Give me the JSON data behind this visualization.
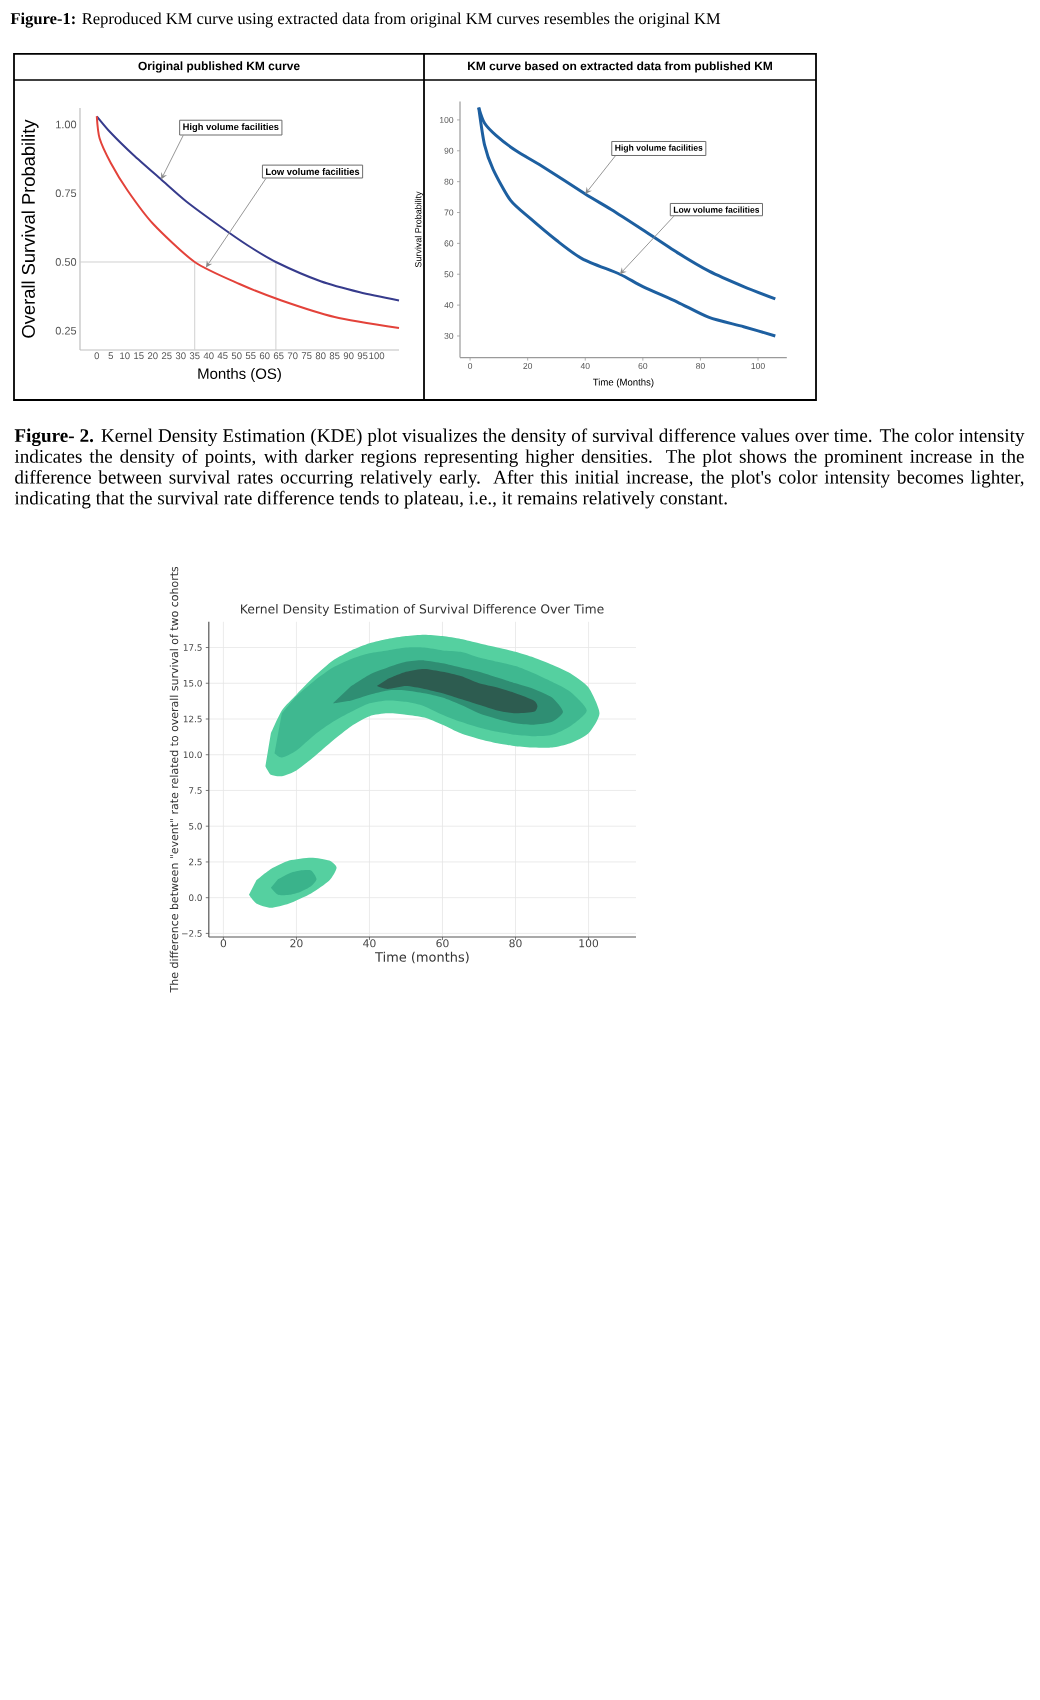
{
  "chart_data": [
    {
      "type": "line",
      "title": "Original published KM curve",
      "xlabel": "Months (OS)",
      "ylabel": "Overall Survival Probability",
      "series": [
        {
          "color": "#363b8c",
          "x": [
            0,
            5,
            13,
            23,
            32,
            44,
            54,
            64,
            80,
            94,
            108
          ],
          "values": [
            1.03,
            0.97,
            0.89,
            0.8,
            0.72,
            0.63,
            0.56,
            0.5,
            0.43,
            0.39,
            0.36
          ]
        },
        {
          "color": "#e3423a",
          "x": [
            0,
            1,
            5,
            11,
            20,
            35,
            51,
            66,
            85,
            108
          ],
          "values": [
            1.03,
            0.95,
            0.86,
            0.76,
            0.64,
            0.5,
            0.42,
            0.36,
            0.3,
            0.26
          ]
        }
      ],
      "xlim": [
        -6,
        108
      ],
      "ylim": [
        0.18,
        1.06
      ],
      "xticks": [
        0,
        5,
        10,
        15,
        20,
        25,
        30,
        35,
        40,
        45,
        50,
        55,
        60,
        65,
        70,
        75,
        80,
        85,
        90,
        95,
        100
      ],
      "yticks": [
        0.25,
        {
          "value": 0.5,
          "label": "0.50"
        },
        0.75,
        {
          "value": 1,
          "label": "1.00"
        }
      ],
      "ref_lines": [
        {
          "axis": "y",
          "value": 0.5,
          "color": "#d0d0d0"
        },
        {
          "axis": "x",
          "value": 35,
          "color": "#d0d0d0"
        },
        {
          "axis": "x",
          "value": 64,
          "color": "#d0d0d0"
        }
      ],
      "annotations": [
        "**Figure-1:** Reproduced KM curve using extracted data from original KM curves resembles the original KM",
        {
          "text": "High volume facilities",
          "x": 23,
          "y": 0.8
        },
        {
          "text": "Low volume facilities",
          "x": 39,
          "y": 0.48
        }
      ]
    },
    {
      "type": "line",
      "title": "KM curve based on extracted data from published KM",
      "xlabel": "Time (Months)",
      "ylabel": "Survival Probability",
      "series": [
        {
          "color": "#1d5fa0",
          "x": [
            3,
            5,
            9,
            16,
            25,
            40,
            49,
            59,
            72,
            83,
            95,
            106
          ],
          "values": [
            104,
            99,
            95,
            90,
            85,
            76,
            71,
            65,
            57,
            51,
            46,
            42
          ]
        },
        {
          "color": "#1d5fa0",
          "x": [
            3,
            5,
            8,
            14,
            21,
            30,
            39,
            52,
            60,
            72,
            83,
            95,
            106
          ],
          "values": [
            104,
            92,
            84,
            74,
            68,
            61,
            55,
            50,
            46,
            41,
            36,
            33,
            30
          ]
        }
      ],
      "xlim": [
        -3.5,
        110
      ],
      "ylim": [
        23,
        106
      ],
      "xticks": [
        0,
        20,
        40,
        60,
        80,
        100
      ],
      "yticks": [
        30,
        40,
        50,
        60,
        70,
        80,
        90,
        100
      ],
      "annotations": [
        {
          "text": "High volume facilities",
          "x": 40,
          "y": 76
        },
        {
          "text": "Low volume facilities",
          "x": 52,
          "y": 50
        }
      ]
    },
    {
      "type": "area",
      "title": "Kernel Density Estimation of Survival Difference Over Time",
      "xlabel": "Time (months)",
      "ylabel": "The difference between \"event\" rate related to overall survival of two cohorts",
      "series": [
        {
          "color": "#55d0a0",
          "x": [
            11.5,
            13,
            16,
            20,
            25,
            30,
            35,
            40,
            45,
            50,
            55,
            60,
            65,
            70,
            75,
            80,
            85,
            90,
            95,
            100,
            103
          ],
          "values": [
            null,
            null,
            null,
            null,
            null,
            null,
            null,
            null,
            null,
            null,
            null,
            null,
            null,
            null,
            null,
            null,
            null,
            null,
            null,
            null,
            null
          ],
          "lower": [
            9.2,
            8.6,
            8.5,
            8.9,
            9.9,
            11.0,
            12.0,
            12.7,
            12.9,
            12.8,
            12.6,
            12.1,
            11.5,
            11.1,
            10.8,
            10.6,
            10.5,
            10.5,
            10.8,
            11.5,
            12.9
          ],
          "upper": [
            9.2,
            11.5,
            13.1,
            14.2,
            15.5,
            16.6,
            17.3,
            17.8,
            18.1,
            18.3,
            18.4,
            18.3,
            18.1,
            17.8,
            17.5,
            17.2,
            16.8,
            16.3,
            15.7,
            14.7,
            12.9
          ]
        },
        {
          "color": "#3fb890",
          "x": [
            14,
            16,
            20,
            25,
            30,
            35,
            40,
            45,
            50,
            55,
            60,
            65,
            70,
            75,
            80,
            85,
            90,
            95,
            99.5
          ],
          "values": [
            null,
            null,
            null,
            null,
            null,
            null,
            null,
            null,
            null,
            null,
            null,
            null,
            null,
            null,
            null,
            null,
            null,
            null,
            null
          ],
          "lower": [
            10.1,
            9.8,
            10.3,
            11.4,
            12.3,
            13.0,
            13.6,
            13.8,
            13.7,
            13.4,
            12.8,
            12.3,
            11.9,
            11.6,
            11.4,
            11.3,
            11.4,
            12.0,
            13.1
          ],
          "upper": [
            10.1,
            12.9,
            14.1,
            15.2,
            16.1,
            16.7,
            17.1,
            17.3,
            17.5,
            17.5,
            17.3,
            17.2,
            16.8,
            16.5,
            16.2,
            15.7,
            15.1,
            14.4,
            13.1
          ]
        },
        {
          "color": "#2f8e73",
          "x": [
            30,
            35,
            40,
            45,
            50,
            55,
            60,
            65,
            70,
            75,
            80,
            85,
            90,
            93
          ],
          "values": [
            null,
            null,
            null,
            null,
            null,
            null,
            null,
            null,
            null,
            null,
            null,
            null,
            null,
            null
          ],
          "lower": [
            13.6,
            13.8,
            14.2,
            14.5,
            14.5,
            14.3,
            14.0,
            13.5,
            12.9,
            12.5,
            12.2,
            12.1,
            12.3,
            13.0
          ],
          "upper": [
            13.6,
            14.8,
            15.6,
            16.1,
            16.5,
            16.6,
            16.4,
            16.1,
            15.8,
            15.4,
            15.0,
            14.6,
            14.0,
            13.0
          ]
        },
        {
          "color": "#2d5c50",
          "x": [
            42,
            45,
            50,
            55,
            60,
            65,
            70,
            75,
            80,
            85,
            86
          ],
          "values": [
            null,
            null,
            null,
            null,
            null,
            null,
            null,
            null,
            null,
            null,
            null
          ],
          "lower": [
            14.8,
            14.6,
            14.8,
            14.6,
            14.3,
            13.9,
            13.5,
            13.1,
            12.9,
            13.0,
            13.4
          ],
          "upper": [
            14.8,
            15.3,
            15.8,
            16.0,
            15.8,
            15.5,
            15.0,
            14.7,
            14.3,
            13.8,
            13.4
          ]
        },
        {
          "color": "#55d0a0",
          "x": [
            7,
            9,
            13,
            18,
            24,
            29,
            31
          ],
          "values": [
            null,
            null,
            null,
            null,
            null,
            null,
            null
          ],
          "lower": [
            0.2,
            -0.4,
            -0.7,
            -0.4,
            0.3,
            1.2,
            2.1
          ],
          "upper": [
            0.2,
            1.2,
            2.0,
            2.6,
            2.8,
            2.6,
            2.1
          ]
        },
        {
          "color": "#3ab38b",
          "x": [
            13,
            15,
            18,
            21,
            24,
            25.5
          ],
          "values": [
            null,
            null,
            null,
            null,
            null,
            null
          ],
          "lower": [
            0.7,
            0.2,
            0.2,
            0.4,
            0.8,
            1.3
          ],
          "upper": [
            0.7,
            1.3,
            1.7,
            1.9,
            1.9,
            1.3
          ]
        }
      ],
      "xlim": [
        -4,
        113
      ],
      "ylim": [
        -2.75,
        19.3
      ],
      "xticks": [
        0,
        20,
        40,
        60,
        80,
        100
      ],
      "yticks": [
        {
          "value": -2.5,
          "label": "−2.5"
        },
        {
          "value": 0,
          "label": "0.0"
        },
        2.5,
        {
          "value": 5,
          "label": "5.0"
        },
        7.5,
        {
          "value": 10,
          "label": "10.0"
        },
        12.5,
        {
          "value": 15,
          "label": "15.0"
        },
        17.5
      ],
      "grid": true,
      "annotations": [
        "**Figure- 2.** Kernel Density Estimation (KDE) plot visualizes the density of survival difference values over time. The color intensity indicates the density of points, with darker regions representing higher densities. The plot shows the prominent increase in the difference between survival rates occurring relatively early. After this initial increase, the plot's color intensity becomes lighter, indicating that the survival rate difference tends to plateau, i.e., it remains relatively constant."
      ]
    }
  ]
}
